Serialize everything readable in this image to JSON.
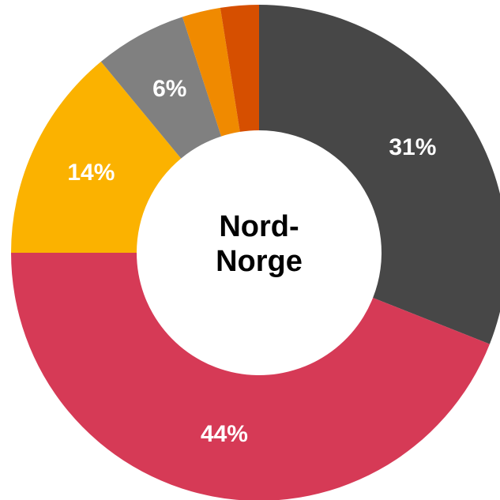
{
  "chart_data": {
    "type": "pie",
    "title": "Nord-Norge",
    "values": [
      31,
      44,
      14,
      6,
      2.5,
      2.5
    ],
    "value_labels": [
      "31%",
      "44%",
      "14%",
      "6%",
      null,
      null
    ],
    "colors": [
      "#474747",
      "#d63a56",
      "#fbb200",
      "#808080",
      "#f08a00",
      "#d64f00"
    ]
  }
}
